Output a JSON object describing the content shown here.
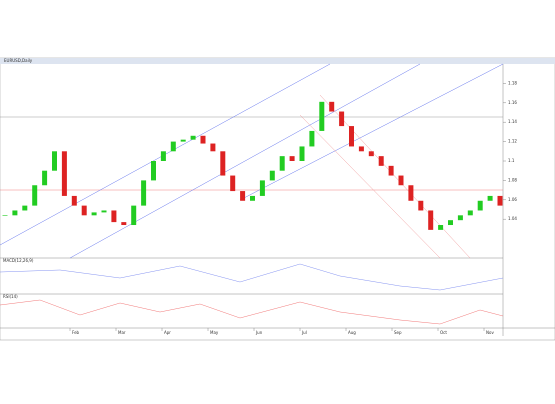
{
  "window": {
    "title": "EURUSD,Daily",
    "pane1": "MACD(12,26,9)",
    "pane2": "RSI(14)"
  },
  "chart_data": {
    "type": "candlestick",
    "closes": [
      1.044,
      1.049,
      1.054,
      1.075,
      1.09,
      1.11,
      1.064,
      1.054,
      1.044,
      1.047,
      1.049,
      1.037,
      1.034,
      1.054,
      1.08,
      1.1,
      1.11,
      1.12,
      1.122,
      1.126,
      1.118,
      1.11,
      1.085,
      1.069,
      1.059,
      1.064,
      1.08,
      1.09,
      1.105,
      1.1,
      1.115,
      1.131,
      1.161,
      1.151,
      1.136,
      1.115,
      1.11,
      1.105,
      1.095,
      1.085,
      1.075,
      1.059,
      1.049,
      1.029,
      1.034,
      1.039,
      1.044,
      1.049,
      1.059,
      1.064,
      1.054
    ],
    "x_labels": [
      "Feb",
      "Mar",
      "Apr",
      "May",
      "Jun",
      "Jul",
      "Aug",
      "Sep",
      "Oct",
      "Nov"
    ],
    "ylim": [
      1.0,
      1.2
    ],
    "yticks": [
      1.04,
      1.06,
      1.08,
      1.1,
      1.12,
      1.14,
      1.16,
      1.18
    ],
    "up_color": "#22cc22",
    "down_color": "#dd2222"
  }
}
